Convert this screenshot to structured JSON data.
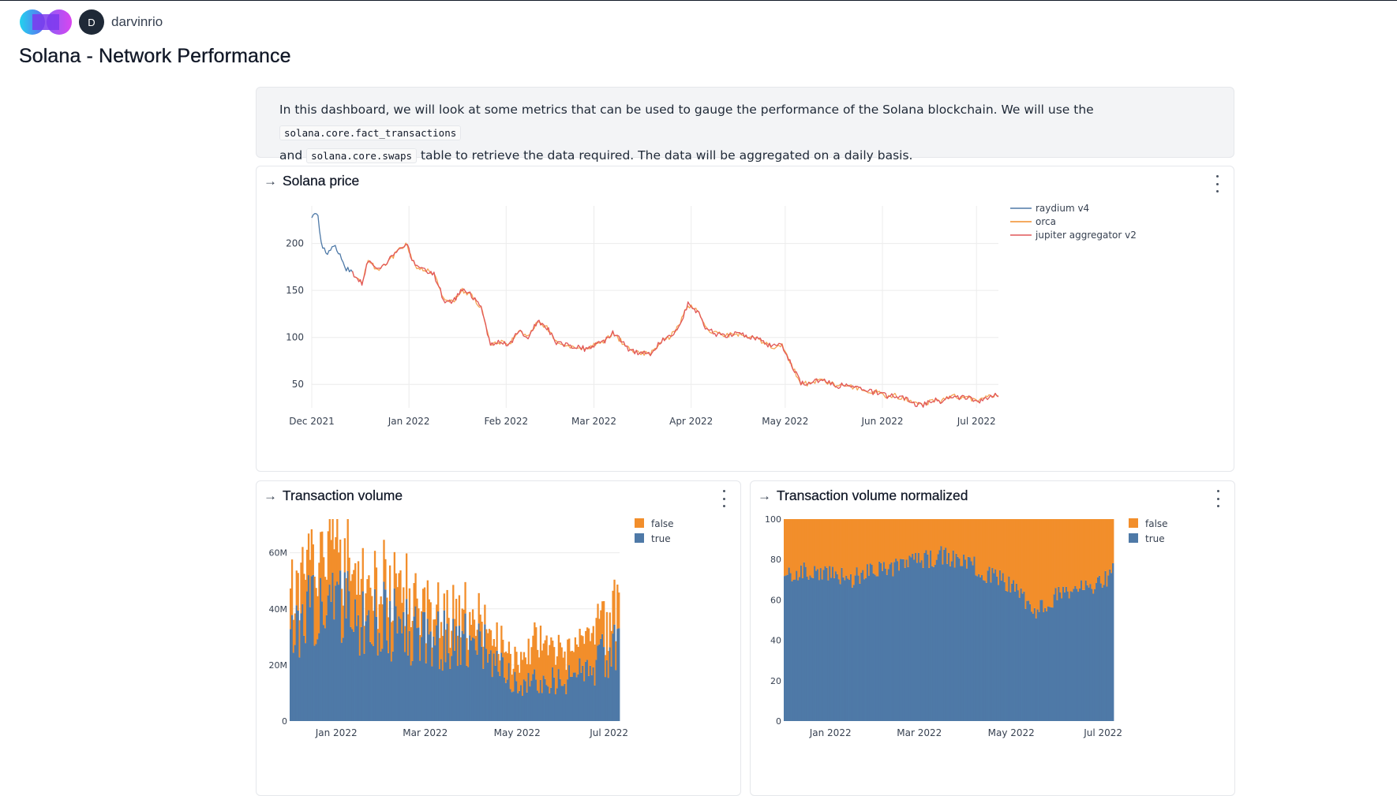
{
  "header": {
    "avatar_initial": "D",
    "username": "darvinrio"
  },
  "page_title": "Solana - Network Performance",
  "intro": {
    "text1": "In this dashboard, we will look at some metrics that can be used to gauge the performance of the Solana blockchain. We will use the",
    "code1": "solana.core.fact_transactions",
    "text2": "and",
    "code2": "solana.core.swaps",
    "text3": "table to retrieve the data required. The data will be aggregated on a daily basis."
  },
  "panels": {
    "price": {
      "title": "Solana price"
    },
    "volume": {
      "title": "Transaction volume"
    },
    "normalized": {
      "title": "Transaction volume normalized"
    }
  },
  "colors": {
    "blue": "#4e79a7",
    "orange": "#f28e2b",
    "red": "#e15759"
  },
  "chart_data": [
    {
      "type": "line",
      "xlabel": "",
      "ylabel": "",
      "x_ticks": [
        "Dec 2021",
        "Jan 2022",
        "Feb 2022",
        "Mar 2022",
        "Apr 2022",
        "May 2022",
        "Jun 2022",
        "Jul 2022"
      ],
      "y_ticks": [
        50,
        100,
        150,
        200
      ],
      "x_range": [
        "2021-12-01",
        "2022-07-08"
      ],
      "ylim": [
        25,
        240
      ],
      "legend_position": "top-right",
      "series": [
        {
          "name": "raydium v4",
          "color": "#4e79a7",
          "x": [
            "2021-12-01",
            "2021-12-03",
            "2021-12-04",
            "2021-12-06",
            "2021-12-08",
            "2021-12-10",
            "2021-12-12",
            "2021-12-14"
          ],
          "values": [
            228,
            232,
            200,
            190,
            198,
            188,
            173,
            168
          ]
        },
        {
          "name": "orca",
          "color": "#f28e2b",
          "x": [
            "2021-12-14",
            "2022-07-08"
          ],
          "values": [
            168,
            38
          ]
        },
        {
          "name": "jupiter aggregator v2",
          "color": "#e15759",
          "x": [
            "2021-12-14",
            "2021-12-17",
            "2021-12-19",
            "2021-12-22",
            "2021-12-25",
            "2021-12-28",
            "2021-12-31",
            "2022-01-03",
            "2022-01-06",
            "2022-01-09",
            "2022-01-12",
            "2022-01-15",
            "2022-01-18",
            "2022-01-21",
            "2022-01-24",
            "2022-01-27",
            "2022-01-30",
            "2022-02-02",
            "2022-02-05",
            "2022-02-08",
            "2022-02-11",
            "2022-02-14",
            "2022-02-17",
            "2022-02-20",
            "2022-02-23",
            "2022-02-26",
            "2022-03-01",
            "2022-03-04",
            "2022-03-07",
            "2022-03-10",
            "2022-03-13",
            "2022-03-16",
            "2022-03-19",
            "2022-03-22",
            "2022-03-25",
            "2022-03-28",
            "2022-03-31",
            "2022-04-03",
            "2022-04-06",
            "2022-04-09",
            "2022-04-12",
            "2022-04-15",
            "2022-04-18",
            "2022-04-21",
            "2022-04-24",
            "2022-04-27",
            "2022-04-30",
            "2022-05-03",
            "2022-05-06",
            "2022-05-09",
            "2022-05-12",
            "2022-05-15",
            "2022-05-18",
            "2022-05-21",
            "2022-05-24",
            "2022-05-27",
            "2022-05-30",
            "2022-06-02",
            "2022-06-05",
            "2022-06-08",
            "2022-06-11",
            "2022-06-14",
            "2022-06-17",
            "2022-06-20",
            "2022-06-23",
            "2022-06-26",
            "2022-06-29",
            "2022-07-02",
            "2022-07-05",
            "2022-07-08"
          ],
          "values": [
            168,
            158,
            182,
            172,
            180,
            190,
            200,
            176,
            172,
            168,
            140,
            138,
            150,
            145,
            132,
            92,
            95,
            92,
            108,
            100,
            118,
            110,
            95,
            92,
            90,
            88,
            92,
            95,
            105,
            95,
            85,
            84,
            82,
            95,
            100,
            112,
            135,
            128,
            108,
            104,
            102,
            104,
            102,
            100,
            95,
            90,
            91,
            70,
            52,
            50,
            55,
            52,
            48,
            50,
            45,
            42,
            42,
            38,
            38,
            35,
            30,
            28,
            33,
            32,
            38,
            36,
            35,
            33,
            37,
            38
          ]
        }
      ]
    },
    {
      "type": "bar",
      "stacked": true,
      "x_ticks": [
        "Jan 2022",
        "Mar 2022",
        "May 2022",
        "Jul 2022"
      ],
      "y_ticks": [
        "0",
        "20M",
        "40M",
        "60M"
      ],
      "ylim": [
        0,
        72000000
      ],
      "x_range": [
        "2021-12-01",
        "2022-07-08"
      ],
      "legend_position": "top-right",
      "series": [
        {
          "name": "false",
          "color": "#f28e2b"
        },
        {
          "name": "true",
          "color": "#4e79a7"
        }
      ],
      "x": [
        "2021-12-01",
        "2021-12-15",
        "2022-01-01",
        "2022-01-15",
        "2022-02-01",
        "2022-02-15",
        "2022-03-01",
        "2022-03-15",
        "2022-04-01",
        "2022-04-15",
        "2022-05-01",
        "2022-05-15",
        "2022-06-01",
        "2022-06-15",
        "2022-07-01",
        "2022-07-08"
      ],
      "true_values": [
        40000000,
        42000000,
        44000000,
        42000000,
        40000000,
        36000000,
        35000000,
        32000000,
        32000000,
        26000000,
        14000000,
        16000000,
        15000000,
        20000000,
        28000000,
        34000000
      ],
      "false_values": [
        16000000,
        18000000,
        18000000,
        16000000,
        14000000,
        12000000,
        10000000,
        10000000,
        8000000,
        8000000,
        10000000,
        14000000,
        12000000,
        12000000,
        13000000,
        14000000
      ]
    },
    {
      "type": "bar",
      "stacked": true,
      "normalized": true,
      "x_ticks": [
        "Jan 2022",
        "Mar 2022",
        "May 2022",
        "Jul 2022"
      ],
      "y_ticks": [
        0,
        20,
        40,
        60,
        80,
        100
      ],
      "ylim": [
        0,
        100
      ],
      "x_range": [
        "2021-12-01",
        "2022-07-08"
      ],
      "legend_position": "top-right",
      "series": [
        {
          "name": "false",
          "color": "#f28e2b"
        },
        {
          "name": "true",
          "color": "#4e79a7"
        }
      ],
      "x": [
        "2021-12-01",
        "2021-12-15",
        "2022-01-01",
        "2022-01-15",
        "2022-02-01",
        "2022-02-15",
        "2022-03-01",
        "2022-03-15",
        "2022-04-01",
        "2022-04-15",
        "2022-05-01",
        "2022-05-15",
        "2022-06-01",
        "2022-06-15",
        "2022-07-01",
        "2022-07-08"
      ],
      "true_pct": [
        73,
        74,
        73,
        71,
        74,
        76,
        79,
        82,
        80,
        72,
        68,
        55,
        62,
        65,
        70,
        74
      ]
    }
  ]
}
